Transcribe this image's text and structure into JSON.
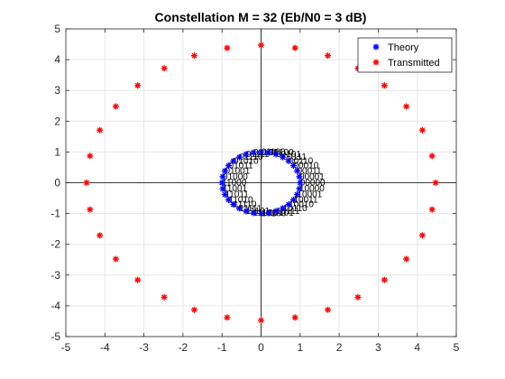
{
  "chart_data": {
    "type": "scatter",
    "title": "Constellation M = 32 (Eb/N0 = 3 dB)",
    "xlabel": "",
    "ylabel": "",
    "xlim": [
      -5,
      5
    ],
    "ylim": [
      -5,
      5
    ],
    "xticks": [
      -5,
      -4,
      -3,
      -2,
      -1,
      0,
      1,
      2,
      3,
      4,
      5
    ],
    "yticks": [
      -5,
      -4,
      -3,
      -2,
      -1,
      0,
      1,
      2,
      3,
      4,
      5
    ],
    "grid": true,
    "legend_location": "top-right",
    "series": [
      {
        "name": "Theory",
        "marker": "*",
        "color": "#0000ff",
        "x": [
          1.0,
          0.981,
          0.924,
          0.831,
          0.707,
          0.556,
          0.383,
          0.195,
          0.0,
          -0.195,
          -0.383,
          -0.556,
          -0.707,
          -0.831,
          -0.924,
          -0.981,
          -1.0,
          -0.981,
          -0.924,
          -0.831,
          -0.707,
          -0.556,
          -0.383,
          -0.195,
          0.0,
          0.195,
          0.383,
          0.556,
          0.707,
          0.831,
          0.924,
          0.981
        ],
        "y": [
          0.0,
          0.195,
          0.383,
          0.556,
          0.707,
          0.831,
          0.924,
          0.981,
          1.0,
          0.981,
          0.924,
          0.831,
          0.707,
          0.556,
          0.383,
          0.195,
          0.0,
          -0.195,
          -0.383,
          -0.556,
          -0.707,
          -0.831,
          -0.924,
          -0.981,
          -1.0,
          -0.981,
          -0.924,
          -0.831,
          -0.707,
          -0.556,
          -0.383,
          -0.195
        ],
        "labels": [
          "00000",
          "00001",
          "00011",
          "00010",
          "00110",
          "00111",
          "00101",
          "00100",
          "01100",
          "01101",
          "01111",
          "01110",
          "01010",
          "01011",
          "01001",
          "01000",
          "11000",
          "11001",
          "11011",
          "11010",
          "11110",
          "11111",
          "11101",
          "11100",
          "10100",
          "10101",
          "10111",
          "10110",
          "10010",
          "10011",
          "10001",
          "10000"
        ]
      },
      {
        "name": "Transmitted",
        "marker": "*",
        "color": "#ff0000",
        "x": [
          4.47,
          4.38,
          4.13,
          3.72,
          3.16,
          2.48,
          1.71,
          0.87,
          0.0,
          -0.87,
          -1.71,
          -2.48,
          -3.16,
          -3.72,
          -4.13,
          -4.38,
          -4.47,
          -4.38,
          -4.13,
          -3.72,
          -3.16,
          -2.48,
          -1.71,
          -0.87,
          0.0,
          0.87,
          1.71,
          2.48,
          3.16,
          3.72,
          4.13,
          4.38
        ],
        "y": [
          0.0,
          0.87,
          1.71,
          2.48,
          3.16,
          3.72,
          4.13,
          4.38,
          4.47,
          4.38,
          4.13,
          3.72,
          3.16,
          2.48,
          1.71,
          0.87,
          0.0,
          -0.87,
          -1.71,
          -2.48,
          -3.16,
          -3.72,
          -4.13,
          -4.38,
          -4.47,
          -4.38,
          -4.13,
          -3.72,
          -3.16,
          -2.48,
          -1.71,
          -0.87
        ]
      }
    ]
  }
}
